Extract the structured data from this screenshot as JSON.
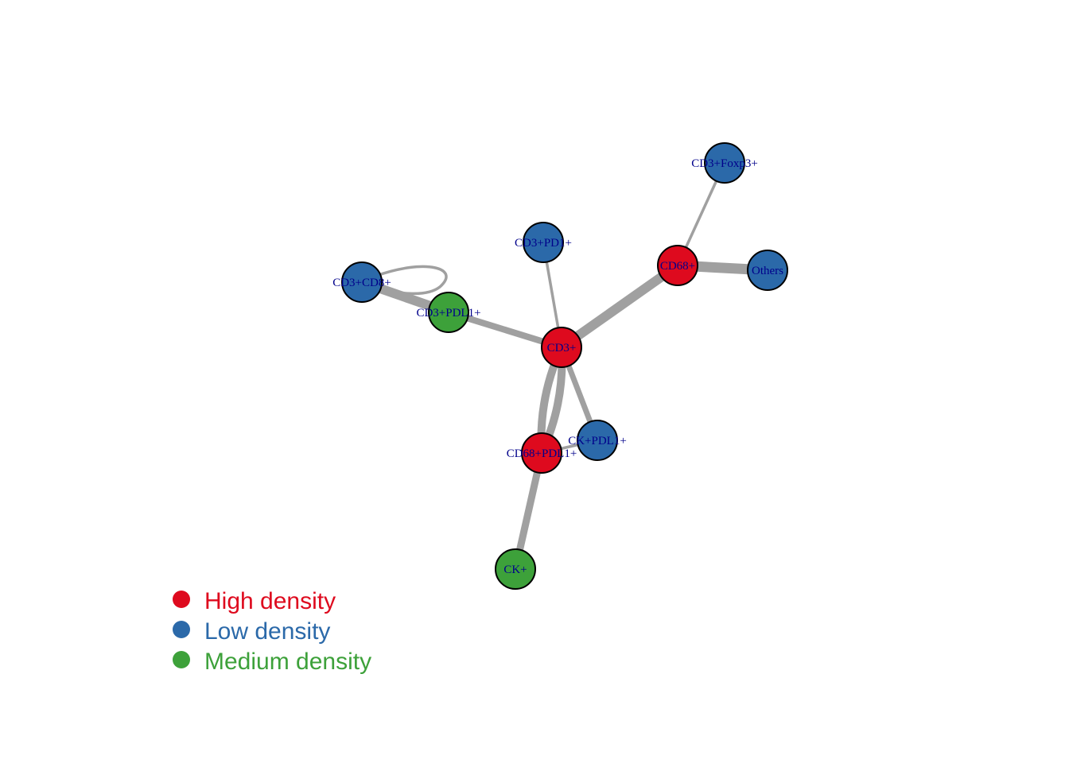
{
  "categories": [
    {
      "id": "high",
      "label": "High density",
      "color": "#de0a1e"
    },
    {
      "id": "low",
      "label": "Low density",
      "color": "#2b69a9"
    },
    {
      "id": "medium",
      "label": "Medium density",
      "color": "#3da13a"
    }
  ],
  "edge_color": "#a0a0a0",
  "node_label_color": "#00008b",
  "nodes": [
    {
      "id": "cd3foxp3",
      "label": "CD3+Foxp3+",
      "category": "low"
    },
    {
      "id": "cd3pd1",
      "label": "CD3+PD1+",
      "category": "low"
    },
    {
      "id": "cd68",
      "label": "CD68+",
      "category": "high"
    },
    {
      "id": "others",
      "label": "Others",
      "category": "low"
    },
    {
      "id": "cd3cd8",
      "label": "CD3+CD8+",
      "category": "low"
    },
    {
      "id": "cd3pdl1",
      "label": "CD3+PDL1+",
      "category": "medium"
    },
    {
      "id": "cd3",
      "label": "CD3+",
      "category": "high"
    },
    {
      "id": "ckpdl1",
      "label": "CK+PDL1+",
      "category": "low"
    },
    {
      "id": "cd68pdl1",
      "label": "CD68+PDL1+",
      "category": "high"
    },
    {
      "id": "ck",
      "label": "CK+",
      "category": "medium"
    }
  ],
  "edges": [
    {
      "source": "cd68",
      "target": "cd3foxp3"
    },
    {
      "source": "cd68",
      "target": "others"
    },
    {
      "source": "cd3",
      "target": "cd68"
    },
    {
      "source": "cd3",
      "target": "cd3pd1"
    },
    {
      "source": "cd3",
      "target": "cd3pdl1"
    },
    {
      "source": "cd3pdl1",
      "target": "cd3cd8"
    },
    {
      "source": "cd3cd8",
      "target": "cd3cd8",
      "loop": true
    },
    {
      "source": "cd3",
      "target": "ckpdl1"
    },
    {
      "source": "cd3",
      "target": "cd68pdl1",
      "curve": 1
    },
    {
      "source": "cd3",
      "target": "cd68pdl1",
      "curve": -1
    },
    {
      "source": "cd68pdl1",
      "target": "ckpdl1"
    },
    {
      "source": "cd68pdl1",
      "target": "ck"
    }
  ]
}
